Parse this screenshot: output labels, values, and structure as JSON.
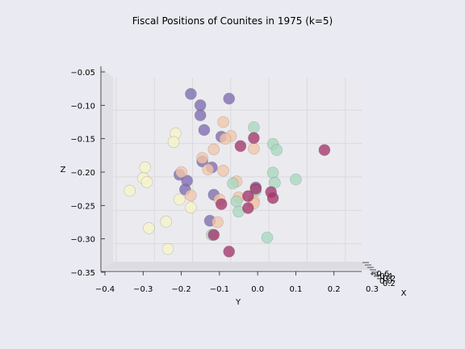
{
  "chart_data": {
    "type": "scatter",
    "title": "Fiscal Positions of Counites in 1975 (k=5)",
    "xlabel": "X",
    "ylabel": "Y",
    "zlabel": "Z",
    "y_ticks": [
      "−0.4",
      "−0.3",
      "−0.2",
      "−0.1",
      "0.0",
      "0.1",
      "0.2",
      "0.3"
    ],
    "y_tick_values": [
      -0.4,
      -0.3,
      -0.2,
      -0.1,
      0.0,
      0.1,
      0.2,
      0.3
    ],
    "z_ticks": [
      "−0.05",
      "−0.10",
      "−0.15",
      "−0.20",
      "−0.25",
      "−0.30",
      "−0.35"
    ],
    "z_tick_values": [
      -0.05,
      -0.1,
      -0.15,
      -0.2,
      -0.25,
      -0.3,
      -0.35
    ],
    "x_ticks": [
      "−0.6",
      "−0.4",
      "−0.2",
      "0.0",
      "0.2"
    ],
    "ylim": [
      -0.4,
      0.3
    ],
    "zlim": [
      -0.35,
      -0.05
    ],
    "grid": true,
    "legend": "none",
    "series": [
      {
        "color": "#7e6bb0",
        "points": [
          [
            -0.175,
            -0.083
          ],
          [
            -0.075,
            -0.09
          ],
          [
            -0.15,
            -0.1
          ],
          [
            -0.15,
            -0.115
          ],
          [
            -0.14,
            -0.137
          ],
          [
            -0.095,
            -0.147
          ],
          [
            -0.145,
            -0.184
          ],
          [
            -0.12,
            -0.193
          ],
          [
            -0.205,
            -0.204
          ],
          [
            -0.185,
            -0.213
          ],
          [
            -0.19,
            -0.226
          ],
          [
            -0.115,
            -0.234
          ],
          [
            -0.125,
            -0.273
          ],
          [
            -0.005,
            -0.223
          ]
        ]
      },
      {
        "color": "#f2c5a8",
        "points": [
          [
            -0.09,
            -0.125
          ],
          [
            -0.07,
            -0.146
          ],
          [
            -0.085,
            -0.15
          ],
          [
            -0.115,
            -0.166
          ],
          [
            -0.145,
            -0.179
          ],
          [
            -0.13,
            -0.196
          ],
          [
            -0.2,
            -0.2
          ],
          [
            -0.09,
            -0.198
          ],
          [
            -0.055,
            -0.214
          ],
          [
            -0.175,
            -0.235
          ],
          [
            -0.1,
            -0.241
          ],
          [
            -0.05,
            -0.238
          ],
          [
            -0.01,
            -0.243
          ],
          [
            -0.01,
            -0.247
          ],
          [
            -0.105,
            -0.275
          ],
          [
            -0.01,
            -0.165
          ]
        ]
      },
      {
        "color": "#a8d8bf",
        "points": [
          [
            -0.01,
            -0.133
          ],
          [
            0.04,
            -0.158
          ],
          [
            0.05,
            -0.167
          ],
          [
            0.04,
            -0.201
          ],
          [
            0.1,
            -0.211
          ],
          [
            0.045,
            -0.216
          ],
          [
            -0.065,
            -0.217
          ],
          [
            -0.005,
            -0.228
          ],
          [
            -0.055,
            -0.244
          ],
          [
            -0.05,
            -0.259
          ],
          [
            -0.12,
            -0.294
          ],
          [
            0.025,
            -0.298
          ]
        ]
      },
      {
        "color": "#a3346a",
        "points": [
          [
            0.175,
            -0.167
          ],
          [
            -0.01,
            -0.149
          ],
          [
            -0.045,
            -0.161
          ],
          [
            -0.005,
            -0.225
          ],
          [
            0.035,
            -0.23
          ],
          [
            -0.025,
            -0.236
          ],
          [
            0.04,
            -0.239
          ],
          [
            -0.095,
            -0.248
          ],
          [
            -0.025,
            -0.254
          ],
          [
            -0.115,
            -0.294
          ],
          [
            -0.075,
            -0.319
          ]
        ]
      },
      {
        "color": "#f7f3c8",
        "points": [
          [
            -0.215,
            -0.142
          ],
          [
            -0.22,
            -0.155
          ],
          [
            -0.295,
            -0.193
          ],
          [
            -0.3,
            -0.209
          ],
          [
            -0.29,
            -0.215
          ],
          [
            -0.335,
            -0.228
          ],
          [
            -0.205,
            -0.241
          ],
          [
            -0.175,
            -0.253
          ],
          [
            -0.24,
            -0.274
          ],
          [
            -0.285,
            -0.284
          ],
          [
            -0.235,
            -0.315
          ]
        ]
      }
    ]
  }
}
